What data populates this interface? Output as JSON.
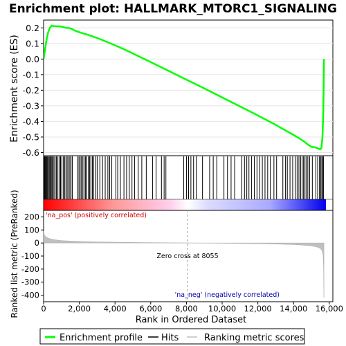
{
  "chart_data": {
    "type": "line",
    "title": "Enrichment plot: HALLMARK_MTORC1_SIGNALING",
    "xlabel": "Rank in Ordered Dataset",
    "x_ticks": [
      0,
      2000,
      4000,
      6000,
      8000,
      10000,
      12000,
      14000,
      16000
    ],
    "x_tick_labels": [
      "0",
      "2,000",
      "4,000",
      "6,000",
      "8,000",
      "10,000",
      "12,000",
      "14,000",
      "16,000"
    ],
    "xlim": [
      0,
      16200
    ],
    "n_genes": 15700,
    "colors": {
      "es_line": "#00ff00",
      "hits": "#000000",
      "metric": "#c0c0c0",
      "zero_line": "#a0a0a0",
      "pos_label": "#cc0000",
      "neg_label": "#0000aa"
    },
    "panels": {
      "enrichment_score": {
        "ylabel": "Enrichment score (ES)",
        "ylim": [
          -0.62,
          0.25
        ],
        "y_ticks": [
          0.2,
          0.1,
          0.0,
          -0.1,
          -0.2,
          -0.3,
          -0.4,
          -0.5,
          -0.6
        ],
        "y_tick_labels": [
          "0.2",
          "0.1",
          "0.0",
          "-0.1",
          "-0.2",
          "-0.3",
          "-0.4",
          "-0.5",
          "-0.6"
        ],
        "grid": true,
        "series": {
          "name": "Enrichment profile",
          "x": [
            0,
            80,
            160,
            250,
            350,
            450,
            550,
            700,
            900,
            1100,
            1250,
            1400,
            1550,
            1700,
            1850,
            2000,
            2500,
            3000,
            3500,
            4000,
            4500,
            5000,
            5500,
            6000,
            6500,
            7000,
            7500,
            8000,
            8500,
            9000,
            9500,
            10000,
            10500,
            11000,
            11500,
            12000,
            12500,
            13000,
            13500,
            14000,
            14200,
            14400,
            14600,
            14800,
            15000,
            15150,
            15300,
            15400,
            15500,
            15560,
            15620,
            15660,
            15690,
            15700
          ],
          "y": [
            0.0,
            0.06,
            0.12,
            0.17,
            0.2,
            0.215,
            0.212,
            0.21,
            0.21,
            0.205,
            0.2,
            0.2,
            0.195,
            0.185,
            0.178,
            0.172,
            0.155,
            0.135,
            0.112,
            0.088,
            0.063,
            0.036,
            0.008,
            -0.02,
            -0.048,
            -0.076,
            -0.104,
            -0.132,
            -0.16,
            -0.188,
            -0.217,
            -0.246,
            -0.275,
            -0.304,
            -0.333,
            -0.362,
            -0.392,
            -0.422,
            -0.455,
            -0.487,
            -0.5,
            -0.515,
            -0.53,
            -0.548,
            -0.563,
            -0.565,
            -0.57,
            -0.575,
            -0.58,
            -0.57,
            -0.5,
            -0.35,
            -0.15,
            0.0
          ]
        }
      },
      "hits": {
        "name": "Hits",
        "ranks": [
          20,
          60,
          100,
          140,
          180,
          220,
          270,
          320,
          370,
          420,
          470,
          520,
          580,
          650,
          720,
          800,
          880,
          950,
          1020,
          1100,
          1180,
          1250,
          1320,
          1400,
          1470,
          1540,
          1610,
          1900,
          1980,
          2050,
          2120,
          2200,
          2270,
          2350,
          2420,
          2500,
          2580,
          2650,
          2730,
          2800,
          2900,
          3000,
          3150,
          3300,
          3450,
          3600,
          3700,
          3820,
          4050,
          4150,
          4300,
          4500,
          4650,
          4800,
          4950,
          5100,
          5300,
          5500,
          5750,
          6100,
          6300,
          6600,
          6750,
          6850,
          7850,
          8000,
          8120,
          8250,
          8400,
          8550,
          8900,
          9300,
          9500,
          9700,
          10100,
          10300,
          10500,
          10700,
          11100,
          11250,
          11380,
          11500,
          11650,
          11800,
          11950,
          12100,
          12250,
          12400,
          12550,
          12700,
          12900,
          13050,
          13400,
          13550,
          13650,
          13800,
          13950,
          14100,
          14200,
          14300,
          14400,
          14480,
          14560,
          14640,
          14720,
          14800,
          14900,
          15050,
          15250,
          15350,
          15450,
          15520,
          15580,
          15630,
          15680
        ]
      },
      "ranked_metric": {
        "name": "Ranking metric scores",
        "ylabel": "Ranked list metric (PreRanked)",
        "ylim": [
          -450,
          250
        ],
        "y_ticks": [
          200,
          100,
          0,
          -100,
          -200,
          -300,
          -400
        ],
        "y_tick_labels": [
          "200",
          "100",
          "0",
          "-100",
          "-200",
          "-300",
          "-400"
        ],
        "x": [
          0,
          50,
          150,
          300,
          600,
          1000,
          2000,
          3000,
          4000,
          5000,
          6000,
          7000,
          8055,
          9000,
          10000,
          11000,
          12000,
          13000,
          14000,
          14500,
          15000,
          15300,
          15500,
          15600,
          15650,
          15680,
          15700
        ],
        "y": [
          90,
          60,
          45,
          35,
          25,
          18,
          12,
          8,
          6,
          4,
          3,
          1.5,
          0,
          -1,
          -2,
          -3,
          -5,
          -8,
          -12,
          -16,
          -22,
          -30,
          -42,
          -60,
          -90,
          -180,
          -420
        ],
        "zero_cross_label": "Zero cross at 8055",
        "zero_cross": 8055,
        "pos_label": "'na_pos' (positively correlated)",
        "neg_label": "'na_neg' (negatively correlated)"
      }
    },
    "legend": {
      "position": "bottom",
      "entries": [
        {
          "label": "Enrichment profile",
          "color": "#00ff00"
        },
        {
          "label": "Hits",
          "color": "#000000"
        },
        {
          "label": "Ranking metric scores",
          "color": "#c0c0c0"
        }
      ]
    }
  }
}
